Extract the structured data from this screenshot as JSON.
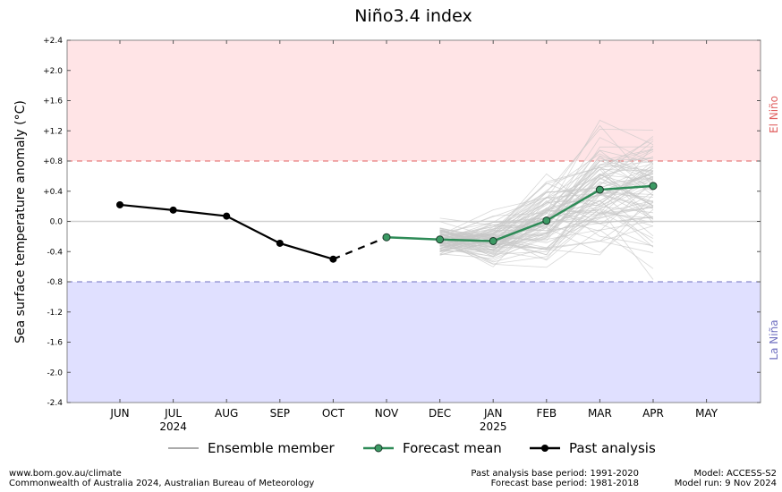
{
  "chart_data": {
    "type": "line",
    "title": "Niño3.4 index",
    "ylabel": "Sea surface temperature anomaly (°C)",
    "ylim": [
      -2.4,
      2.4
    ],
    "yticks": [
      "+2.4",
      "+2.0",
      "+1.6",
      "+1.2",
      "+0.8",
      "+0.4",
      "0.0",
      "-0.4",
      "-0.8",
      "-1.2",
      "-1.6",
      "-2.0",
      "-2.4"
    ],
    "ytick_values": [
      2.4,
      2.0,
      1.6,
      1.2,
      0.8,
      0.4,
      0.0,
      -0.4,
      -0.8,
      -1.2,
      -1.6,
      -2.0,
      -2.4
    ],
    "categories": [
      "JUN",
      "JUL",
      "AUG",
      "SEP",
      "OCT",
      "NOV",
      "DEC",
      "JAN",
      "FEB",
      "MAR",
      "APR",
      "MAY"
    ],
    "year_labels": [
      {
        "month": "JUL",
        "text": "2024"
      },
      {
        "month": "JAN",
        "text": "2025"
      }
    ],
    "thresholds": {
      "el_nino": {
        "value": 0.8,
        "label": "El Niño",
        "color": "#e06060",
        "fill": "#ffe4e6"
      },
      "la_nina": {
        "value": -0.8,
        "label": "La Niña",
        "color": "#7070c0",
        "fill": "#e0e0ff"
      }
    },
    "series": [
      {
        "name": "Past analysis",
        "color": "#000000",
        "x": [
          "JUN",
          "JUL",
          "AUG",
          "SEP",
          "OCT"
        ],
        "values": [
          0.22,
          0.15,
          0.07,
          -0.29,
          -0.5
        ]
      },
      {
        "name": "Forecast mean",
        "color": "#2e8b57",
        "x": [
          "NOV",
          "DEC",
          "JAN",
          "FEB",
          "MAR",
          "APR"
        ],
        "values": [
          -0.21,
          -0.24,
          -0.26,
          0.01,
          0.42,
          0.47
        ]
      }
    ],
    "connector": {
      "from": [
        "OCT",
        -0.5
      ],
      "to": [
        "NOV",
        -0.21
      ],
      "style": "dashed"
    },
    "ensemble": {
      "name": "Ensemble member",
      "color": "#c8c8c8",
      "x": [
        "DEC",
        "JAN",
        "FEB",
        "MAR",
        "APR"
      ]
    },
    "legend": [
      "Ensemble member",
      "Forecast mean",
      "Past analysis"
    ],
    "legend_placement": "bottom"
  },
  "footer": {
    "url": "www.bom.gov.au/climate",
    "copyright": "Commonwealth of Australia 2024, Australian Bureau of Meteorology",
    "past_base": "Past analysis base period: 1991-2020",
    "forecast_base": "Forecast base period: 1981-2018",
    "model": "Model: ACCESS-S2",
    "model_run": "Model run: 9 Nov 2024"
  }
}
